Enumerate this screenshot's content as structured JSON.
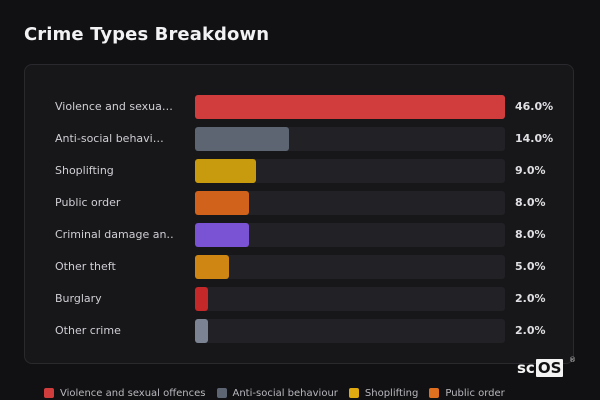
{
  "header": {
    "title": "Crime Types Breakdown"
  },
  "chart_data": {
    "type": "bar",
    "orientation": "horizontal",
    "title": "Crime Types Breakdown",
    "xlim": [
      0,
      46
    ],
    "grid": false,
    "legend_position": "bottom",
    "categories": [
      "Violence and sexua…",
      "Anti-social behavi…",
      "Shoplifting",
      "Public order",
      "Criminal damage an…",
      "Other theft",
      "Burglary",
      "Other crime"
    ],
    "values": [
      46.0,
      14.0,
      9.0,
      8.0,
      8.0,
      5.0,
      2.0,
      2.0
    ],
    "value_labels": [
      "46.0%",
      "14.0%",
      "9.0%",
      "8.0%",
      "8.0%",
      "5.0%",
      "2.0%",
      "2.0%"
    ],
    "colors": [
      "#d13d3d",
      "#5d6573",
      "#c89a0d",
      "#d0621b",
      "#7a52d4",
      "#cf8612",
      "#c42828",
      "#7c8494"
    ]
  },
  "legend": {
    "items": [
      {
        "label": "Violence and sexual offences",
        "color": "#d13d3d"
      },
      {
        "label": "Anti-social behaviour",
        "color": "#5d6573"
      },
      {
        "label": "Shoplifting",
        "color": "#e0aa10"
      },
      {
        "label": "Public order",
        "color": "#e0701f"
      }
    ]
  },
  "logo": {
    "prefix": "sc",
    "boxed": "OS",
    "mark": "®"
  }
}
